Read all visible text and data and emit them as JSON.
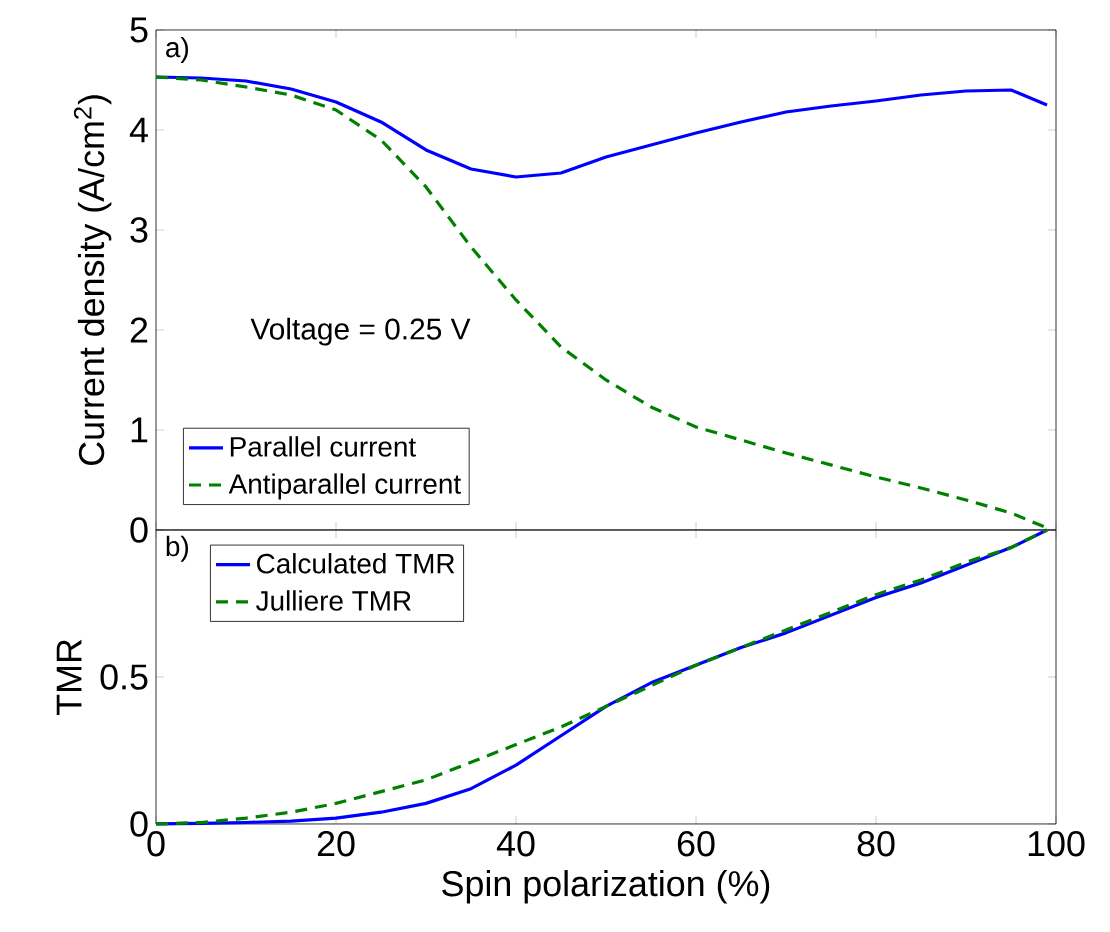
{
  "chart_data": [
    {
      "type": "line",
      "ylabel": "Current density (A/cm$^{2}$)",
      "annotations": [
        "a)",
        "Voltage = 0.25 V"
      ],
      "xlim": [
        0,
        100
      ],
      "xticks": [
        0,
        20,
        40,
        60,
        80,
        100
      ],
      "ylim": [
        0,
        5
      ],
      "yticks": [
        0,
        1,
        2,
        3,
        4,
        5
      ],
      "tick_labels": "y",
      "legend": "bottom left",
      "x": [
        0,
        5,
        10,
        15,
        20,
        25,
        30,
        35,
        40,
        45,
        50,
        55,
        60,
        65,
        70,
        75,
        80,
        85,
        90,
        95,
        99
      ],
      "series": [
        {
          "name": "Parallel current",
          "color": "#0000ff",
          "line_style": "solid",
          "values": [
            4.53,
            4.52,
            4.49,
            4.41,
            4.28,
            4.08,
            3.8,
            3.61,
            3.53,
            3.57,
            3.73,
            3.85,
            3.97,
            4.08,
            4.18,
            4.24,
            4.29,
            4.35,
            4.39,
            4.4,
            4.25
          ]
        },
        {
          "name": "Antiparallel current",
          "color": "#008000",
          "line_style": "dashed",
          "values": [
            4.53,
            4.5,
            4.43,
            4.35,
            4.2,
            3.9,
            3.43,
            2.83,
            2.3,
            1.83,
            1.5,
            1.23,
            1.03,
            0.9,
            0.77,
            0.65,
            0.53,
            0.42,
            0.3,
            0.17,
            0.02
          ]
        }
      ]
    },
    {
      "type": "line",
      "xlabel": "Spin polarization (%)",
      "ylabel": "TMR",
      "annotations": [
        "b)"
      ],
      "xlim": [
        0,
        100
      ],
      "xticks": [
        0,
        20,
        40,
        60,
        80,
        100
      ],
      "ylim": [
        0,
        1
      ],
      "yticks": [
        0,
        0.5,
        {
          "value": 1,
          "label": null
        }
      ],
      "legend": "top left",
      "x": [
        0,
        5,
        10,
        15,
        20,
        25,
        30,
        35,
        40,
        45,
        50,
        55,
        60,
        65,
        70,
        75,
        80,
        85,
        90,
        95,
        99
      ],
      "series": [
        {
          "name": "Calculated TMR",
          "color": "#0000ff",
          "line_style": "solid",
          "values": [
            0,
            0.002,
            0.005,
            0.01,
            0.02,
            0.04,
            0.07,
            0.12,
            0.2,
            0.3,
            0.4,
            0.48,
            0.54,
            0.6,
            0.65,
            0.71,
            0.77,
            0.82,
            0.88,
            0.94,
            1
          ]
        },
        {
          "name": "Julliere TMR",
          "color": "#008000",
          "line_style": "dashed",
          "values": [
            0,
            0.005,
            0.02,
            0.04,
            0.07,
            0.11,
            0.15,
            0.21,
            0.27,
            0.33,
            0.4,
            0.47,
            0.54,
            0.6,
            0.66,
            0.72,
            0.78,
            0.83,
            0.89,
            0.94,
            1
          ]
        }
      ]
    }
  ]
}
